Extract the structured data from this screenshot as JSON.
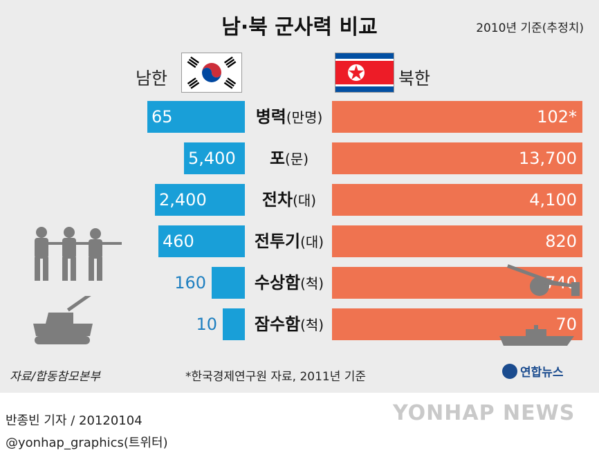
{
  "header": {
    "title": "남·북 군사력 비교",
    "basis": "2010년 기준(추정치)"
  },
  "sides": {
    "south_label": "남한",
    "north_label": "북한"
  },
  "colors": {
    "south": "#199fd8",
    "north": "#ef7350",
    "background": "#ececec"
  },
  "chart_data": {
    "type": "bar",
    "orientation": "horizontal-butterfly",
    "categories": [
      {
        "name": "병력",
        "unit": "(만명)"
      },
      {
        "name": "포",
        "unit": "(문)"
      },
      {
        "name": "전차",
        "unit": "(대)"
      },
      {
        "name": "전투기",
        "unit": "(대)"
      },
      {
        "name": "수상함",
        "unit": "(척)"
      },
      {
        "name": "잠수함",
        "unit": "(척)"
      }
    ],
    "series": [
      {
        "name": "남한",
        "values": [
          65,
          5400,
          2400,
          460,
          160,
          10
        ],
        "labels": [
          "65",
          "5,400",
          "2,400",
          "460",
          "160",
          "10"
        ]
      },
      {
        "name": "북한",
        "values": [
          102,
          13700,
          4100,
          820,
          740,
          70
        ],
        "labels": [
          "102*",
          "13,700",
          "4,100",
          "820",
          "740",
          "70"
        ]
      }
    ]
  },
  "footer": {
    "source": "자료/합동참모본부",
    "note": "*한국경제연구원 자료, 2011년 기준",
    "logo": "연합뉴스",
    "reporter": "반종빈 기자 / 20120104",
    "twitter": "@yonhap_graphics(트위터)",
    "watermark": "YONHAP NEWS"
  }
}
